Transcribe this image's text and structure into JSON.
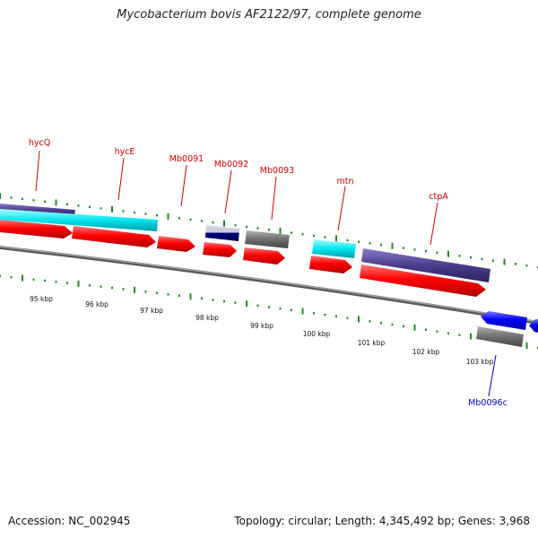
{
  "title": "Mycobacterium bovis AF2122/97, complete genome",
  "footer": {
    "accession": "Accession: NC_002945",
    "info": "Topology: circular; Length: 4,345,492 bp; Genes: 3,968"
  },
  "colors": {
    "red_gene": "#ff0000",
    "blue_gene": "#0000ff",
    "cyan_gene": "#00e5ee",
    "purple_gene": "#4b3c8c",
    "gray_gene": "#707070",
    "navy_gene": "#000080",
    "tick_green": "#1e8c1e",
    "backbone": "#808080",
    "forward_label": "#cc0000",
    "reverse_label": "#0000cc"
  },
  "gene_labels": [
    {
      "id": "hycQ",
      "text": "hycQ",
      "strand": "forward"
    },
    {
      "id": "hycE",
      "text": "hycE",
      "strand": "forward"
    },
    {
      "id": "Mb0091",
      "text": "Mb0091",
      "strand": "forward"
    },
    {
      "id": "Mb0092",
      "text": "Mb0092",
      "strand": "forward"
    },
    {
      "id": "Mb0093",
      "text": "Mb0093",
      "strand": "forward"
    },
    {
      "id": "mtn",
      "text": "mtn",
      "strand": "forward"
    },
    {
      "id": "ctpA",
      "text": "ctpA",
      "strand": "forward"
    },
    {
      "id": "Mb0096c",
      "text": "Mb0096c",
      "strand": "reverse"
    }
  ],
  "kbp_ticks": [
    "95 kbp",
    "96 kbp",
    "97 kbp",
    "98 kbp",
    "99 kbp",
    "100 kbp",
    "101 kbp",
    "102 kbp",
    "103 kbp"
  ]
}
